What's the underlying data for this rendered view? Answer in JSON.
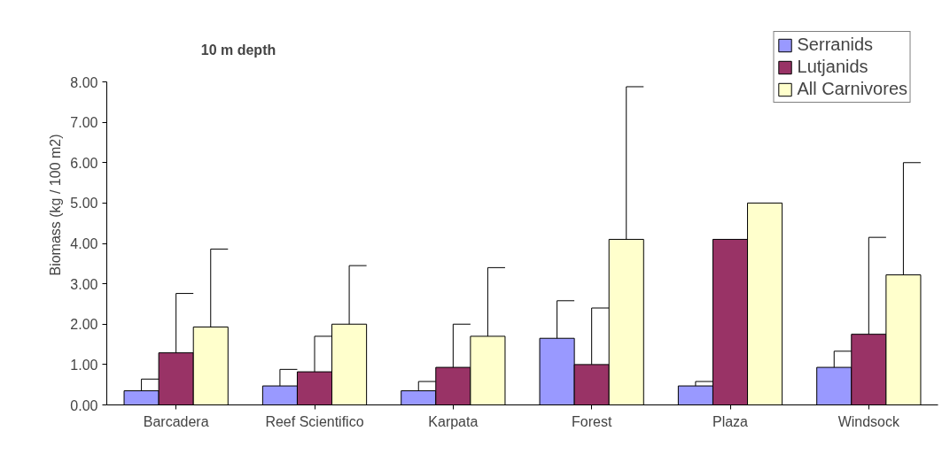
{
  "chart_data": {
    "type": "bar",
    "title": "10 m depth",
    "ylabel": "Biomass (kg / 100 m2)",
    "categories": [
      "Barcadera",
      "Reef Scientifico",
      "Karpata",
      "Forest",
      "Plaza",
      "Windsock"
    ],
    "series": [
      {
        "name": "Serranids",
        "color": "#9999ff",
        "values": [
          0.35,
          0.47,
          0.35,
          1.65,
          0.47,
          0.93
        ],
        "errors": [
          [
            0.35,
            0.64
          ],
          [
            0.47,
            0.88
          ],
          [
            0.35,
            0.58
          ],
          [
            1.65,
            2.58
          ],
          [
            0.47,
            0.58
          ],
          [
            0.93,
            1.33
          ]
        ]
      },
      {
        "name": "Lutjanids",
        "color": "#993366",
        "values": [
          1.29,
          0.82,
          0.93,
          1.0,
          4.1,
          1.75
        ],
        "errors": [
          [
            1.29,
            2.76
          ],
          [
            0.82,
            1.7
          ],
          [
            0.93,
            2.0
          ],
          [
            1.0,
            2.4
          ],
          null,
          [
            1.75,
            4.15
          ]
        ]
      },
      {
        "name": "All Carnivores",
        "color": "#ffffcc",
        "values": [
          1.93,
          2.0,
          1.7,
          4.1,
          5.0,
          3.22
        ],
        "errors": [
          [
            1.93,
            3.86
          ],
          [
            2.0,
            3.45
          ],
          [
            1.7,
            3.4
          ],
          [
            4.1,
            7.88
          ],
          null,
          [
            3.22,
            6.0
          ]
        ]
      }
    ],
    "ylim": [
      0,
      8
    ],
    "yticks": [
      {
        "value": 0,
        "label": "0.00"
      },
      {
        "value": 1,
        "label": "1.00"
      },
      {
        "value": 2,
        "label": "2.00"
      },
      {
        "value": 3,
        "label": "3.00"
      },
      {
        "value": 4,
        "label": "4.00"
      },
      {
        "value": 5,
        "label": "5.00"
      },
      {
        "value": 6,
        "label": "6.00"
      },
      {
        "value": 7,
        "label": "7.00"
      },
      {
        "value": 8,
        "label": "8.00"
      }
    ],
    "grid": false,
    "legend": "top right"
  }
}
